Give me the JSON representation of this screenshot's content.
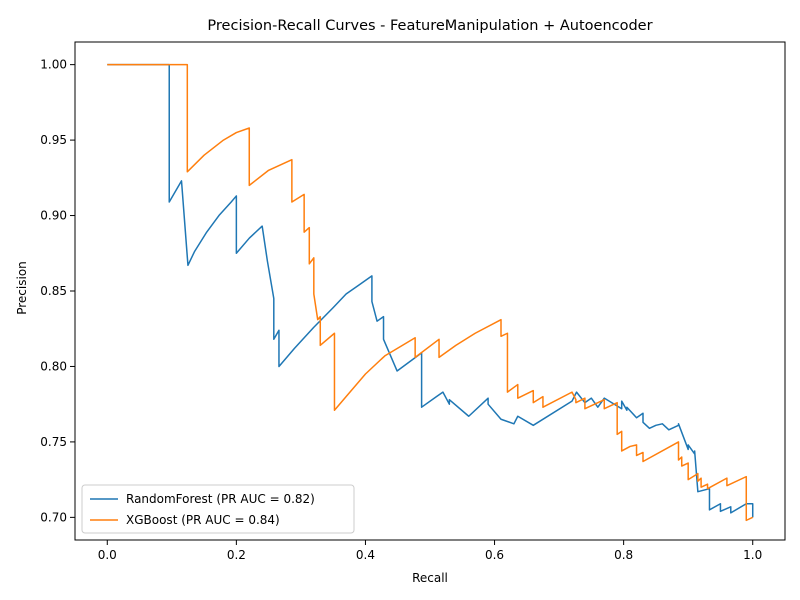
{
  "chart_data": {
    "type": "line",
    "title": "Precision-Recall Curves - FeatureManipulation + Autoencoder",
    "xlabel": "Recall",
    "ylabel": "Precision",
    "xlim": [
      -0.05,
      1.05
    ],
    "ylim": [
      0.685,
      1.015
    ],
    "xticks": [
      0.0,
      0.2,
      0.4,
      0.6,
      0.8,
      1.0
    ],
    "xtick_labels": [
      "0.0",
      "0.2",
      "0.4",
      "0.6",
      "0.8",
      "1.0"
    ],
    "yticks": [
      0.7,
      0.75,
      0.8,
      0.85,
      0.9,
      0.95,
      1.0
    ],
    "ytick_labels": [
      "0.70",
      "0.75",
      "0.80",
      "0.85",
      "0.90",
      "0.95",
      "1.00"
    ],
    "grid": false,
    "legend": "lower-left",
    "series": [
      {
        "name": "RandomForest (PR AUC = 0.82)",
        "color": "#1f77b4",
        "x": [
          0.0,
          0.096,
          0.096,
          0.115,
          0.125,
          0.135,
          0.154,
          0.173,
          0.192,
          0.2,
          0.2,
          0.22,
          0.24,
          0.248,
          0.258,
          0.258,
          0.266,
          0.266,
          0.29,
          0.32,
          0.35,
          0.37,
          0.39,
          0.41,
          0.41,
          0.418,
          0.428,
          0.428,
          0.449,
          0.487,
          0.487,
          0.51,
          0.52,
          0.53,
          0.53,
          0.56,
          0.59,
          0.59,
          0.61,
          0.63,
          0.636,
          0.66,
          0.72,
          0.727,
          0.74,
          0.75,
          0.76,
          0.77,
          0.797,
          0.797,
          0.805,
          0.805,
          0.82,
          0.83,
          0.83,
          0.84,
          0.85,
          0.86,
          0.87,
          0.885,
          0.885,
          0.9,
          0.9,
          0.91,
          0.91,
          0.915,
          0.933,
          0.933,
          0.95,
          0.95,
          0.966,
          0.966,
          0.99,
          1.0,
          1.0
        ],
        "y": [
          1.0,
          1.0,
          0.909,
          0.923,
          0.867,
          0.876,
          0.889,
          0.9,
          0.909,
          0.913,
          0.875,
          0.885,
          0.893,
          0.87,
          0.845,
          0.818,
          0.824,
          0.8,
          0.812,
          0.826,
          0.839,
          0.848,
          0.854,
          0.86,
          0.843,
          0.83,
          0.833,
          0.818,
          0.797,
          0.809,
          0.773,
          0.78,
          0.783,
          0.775,
          0.778,
          0.767,
          0.779,
          0.775,
          0.765,
          0.762,
          0.767,
          0.761,
          0.777,
          0.783,
          0.776,
          0.779,
          0.773,
          0.779,
          0.772,
          0.777,
          0.771,
          0.773,
          0.766,
          0.769,
          0.763,
          0.759,
          0.761,
          0.762,
          0.758,
          0.761,
          0.762,
          0.745,
          0.748,
          0.742,
          0.744,
          0.717,
          0.719,
          0.705,
          0.709,
          0.704,
          0.707,
          0.703,
          0.709,
          0.709,
          0.7
        ],
        "series_lines": "Line series for RandomForest precision-recall curve"
      },
      {
        "name": "XGBoost (PR AUC = 0.84)",
        "color": "#ff7f0e",
        "x": [
          0.0,
          0.124,
          0.124,
          0.15,
          0.18,
          0.2,
          0.22,
          0.22,
          0.25,
          0.286,
          0.286,
          0.305,
          0.305,
          0.313,
          0.313,
          0.32,
          0.32,
          0.326,
          0.33,
          0.33,
          0.352,
          0.352,
          0.37,
          0.4,
          0.43,
          0.477,
          0.477,
          0.514,
          0.514,
          0.54,
          0.57,
          0.61,
          0.61,
          0.62,
          0.62,
          0.636,
          0.636,
          0.66,
          0.66,
          0.675,
          0.675,
          0.72,
          0.726,
          0.726,
          0.74,
          0.74,
          0.77,
          0.77,
          0.785,
          0.79,
          0.79,
          0.797,
          0.797,
          0.81,
          0.82,
          0.82,
          0.83,
          0.83,
          0.885,
          0.885,
          0.89,
          0.89,
          0.9,
          0.9,
          0.915,
          0.915,
          0.92,
          0.92,
          0.93,
          0.93,
          0.96,
          0.96,
          0.99,
          0.99,
          1.0
        ],
        "y": [
          1.0,
          1.0,
          0.929,
          0.94,
          0.95,
          0.955,
          0.958,
          0.92,
          0.93,
          0.937,
          0.909,
          0.914,
          0.889,
          0.892,
          0.868,
          0.872,
          0.848,
          0.831,
          0.833,
          0.814,
          0.822,
          0.771,
          0.78,
          0.795,
          0.807,
          0.819,
          0.806,
          0.818,
          0.806,
          0.814,
          0.822,
          0.831,
          0.82,
          0.822,
          0.783,
          0.788,
          0.779,
          0.784,
          0.776,
          0.78,
          0.773,
          0.783,
          0.778,
          0.776,
          0.779,
          0.772,
          0.778,
          0.772,
          0.775,
          0.776,
          0.755,
          0.757,
          0.744,
          0.747,
          0.748,
          0.741,
          0.743,
          0.737,
          0.75,
          0.738,
          0.74,
          0.734,
          0.736,
          0.725,
          0.729,
          0.724,
          0.726,
          0.72,
          0.722,
          0.719,
          0.726,
          0.721,
          0.727,
          0.698,
          0.7
        ]
      }
    ]
  }
}
